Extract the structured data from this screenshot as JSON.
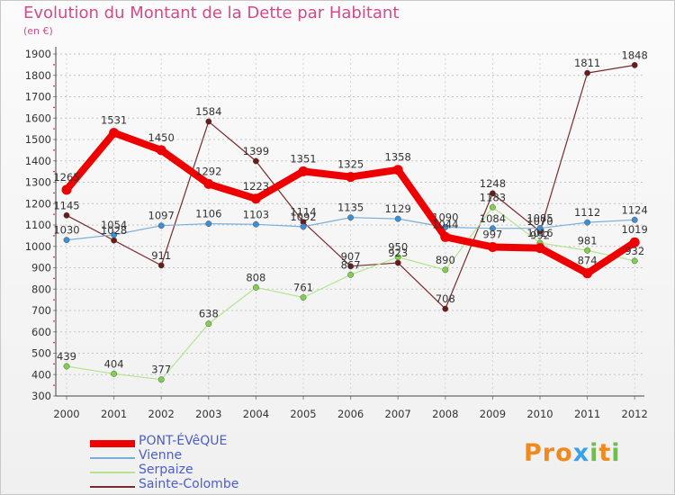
{
  "title": "Evolution du Montant de la Dette par Habitant",
  "subtitle": "(en €)",
  "logo": {
    "p": "P",
    "r": "r",
    "o": "o",
    "x": "x",
    "i": "i",
    "t": "t",
    "i2": "i"
  },
  "chart_data": {
    "type": "line",
    "title": "Evolution du Montant de la Dette par Habitant",
    "subtitle": "(en €)",
    "ylim": [
      300,
      1900
    ],
    "yticks": [
      300,
      400,
      500,
      600,
      700,
      800,
      900,
      1000,
      1100,
      1200,
      1300,
      1400,
      1500,
      1600,
      1700,
      1800,
      1900
    ],
    "x": [
      "2000",
      "2001",
      "2002",
      "2003",
      "2004",
      "2005",
      "2006",
      "2007",
      "2008",
      "2009",
      "2010",
      "2011",
      "2012"
    ],
    "grid": "horizontal dashed",
    "legend_position": "bottom-left",
    "series": [
      {
        "name": "PONT-ÉVêQUE",
        "color": "#ee0000",
        "marker": "#ee0000",
        "width": 8,
        "values": [
          1265,
          1531,
          1450,
          1292,
          1223,
          1351,
          1325,
          1358,
          1044,
          997,
          992,
          874,
          1019
        ]
      },
      {
        "name": "Vienne",
        "color": "#7aaed8",
        "marker": "#3b8fd6",
        "width": 1.2,
        "values": [
          1030,
          1054,
          1097,
          1106,
          1103,
          1092,
          1135,
          1129,
          1090,
          1084,
          1085,
          1112,
          1124
        ]
      },
      {
        "name": "Serpaize",
        "color": "#b6e48e",
        "marker": "#7dd24a",
        "width": 1.2,
        "values": [
          439,
          404,
          377,
          638,
          808,
          761,
          867,
          950,
          890,
          1183,
          1016,
          981,
          932
        ]
      },
      {
        "name": "Sainte-Colombe",
        "color": "#7a2a2a",
        "marker": "#6b1a1a",
        "width": 1.2,
        "values": [
          1145,
          1028,
          911,
          1584,
          1399,
          1114,
          907,
          923,
          708,
          1248,
          1070,
          1811,
          1848
        ]
      }
    ]
  }
}
